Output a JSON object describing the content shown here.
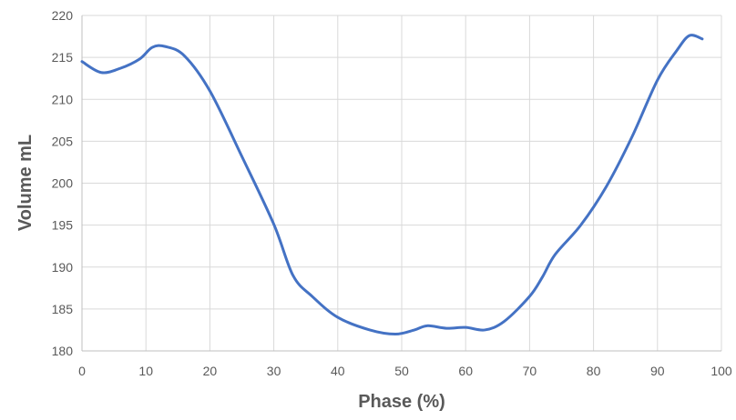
{
  "chart_data": {
    "type": "line",
    "title": "",
    "xlabel": "Phase (%)",
    "ylabel": "Volume mL",
    "xlim": [
      0,
      100
    ],
    "ylim": [
      180,
      220
    ],
    "x_ticks": [
      0,
      10,
      20,
      30,
      40,
      50,
      60,
      70,
      80,
      90,
      100
    ],
    "y_ticks": [
      180,
      185,
      190,
      195,
      200,
      205,
      210,
      215,
      220
    ],
    "grid": true,
    "legend": "none",
    "series": [
      {
        "color": "#4472c4",
        "x": [
          0,
          3,
          6,
          9,
          11,
          13,
          16,
          20,
          25,
          30,
          33,
          36,
          40,
          45,
          49,
          52,
          54,
          57,
          60,
          63,
          66,
          70,
          72,
          74,
          78,
          82,
          86,
          90,
          93,
          95,
          97
        ],
        "y": [
          214.5,
          213.2,
          213.7,
          214.8,
          216.2,
          216.3,
          215.2,
          211.0,
          203.2,
          195.1,
          189.0,
          186.5,
          184.0,
          182.5,
          182.0,
          182.5,
          183.0,
          182.7,
          182.8,
          182.5,
          183.5,
          186.5,
          188.8,
          191.5,
          195.0,
          199.6,
          205.5,
          212.3,
          215.8,
          217.6,
          217.2
        ]
      }
    ]
  }
}
